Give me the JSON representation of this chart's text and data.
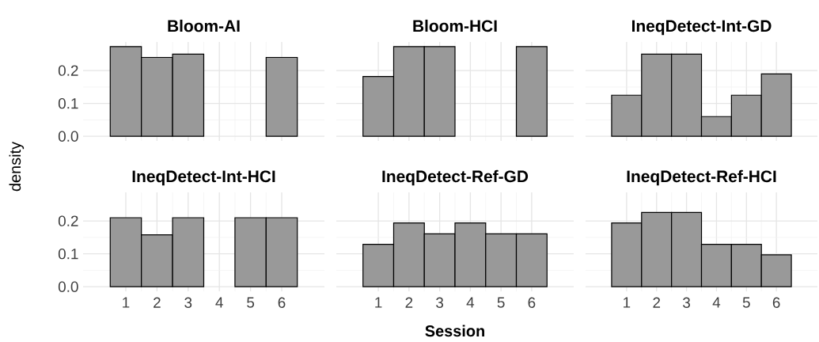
{
  "chart_data": [
    {
      "type": "histogram",
      "title": "Bloom-AI",
      "ylabel": "density",
      "bins": [
        0.5,
        1.5,
        2.5,
        3.5,
        4.5,
        5.5,
        6.5
      ],
      "values": [
        0.273,
        0.24,
        0.25,
        0,
        0,
        0.24
      ],
      "color": "#999999",
      "xlim": [
        -0.37,
        7.37
      ],
      "ylim": [
        -0.014,
        0.287
      ],
      "xticks": [
        1,
        2,
        3,
        4,
        5,
        6
      ],
      "yticks": [
        {
          "value": 0,
          "label": "0.0"
        },
        {
          "value": 0.1,
          "label": "0.1"
        },
        {
          "value": 0.2,
          "label": "0.2"
        }
      ],
      "grid": true,
      "tick_labels": "y"
    },
    {
      "type": "histogram",
      "title": "Bloom-HCI",
      "bins": [
        0.5,
        1.5,
        2.5,
        3.5,
        4.5,
        5.5,
        6.5
      ],
      "values": [
        0.182,
        0.273,
        0.273,
        0,
        0,
        0.273
      ],
      "color": "#999999",
      "xlim": [
        -0.37,
        7.37
      ],
      "ylim": [
        -0.014,
        0.287
      ],
      "xticks": [
        1,
        2,
        3,
        4,
        5,
        6
      ],
      "yticks": [
        0,
        0.1,
        0.2
      ],
      "grid": true,
      "tick_labels": false
    },
    {
      "type": "histogram",
      "title": "IneqDetect-Int-GD",
      "bins": [
        0.5,
        1.5,
        2.5,
        3.5,
        4.5,
        5.5,
        6.5
      ],
      "values": [
        0.125,
        0.25,
        0.25,
        0.06,
        0.125,
        0.19
      ],
      "color": "#999999",
      "xlim": [
        -0.37,
        7.37
      ],
      "ylim": [
        -0.014,
        0.287
      ],
      "xticks": [
        1,
        2,
        3,
        4,
        5,
        6
      ],
      "yticks": [
        0,
        0.1,
        0.2
      ],
      "grid": true,
      "tick_labels": false
    },
    {
      "type": "histogram",
      "title": "IneqDetect-Int-HCI",
      "bins": [
        0.5,
        1.5,
        2.5,
        3.5,
        4.5,
        5.5,
        6.5
      ],
      "values": [
        0.21,
        0.158,
        0.21,
        0,
        0.21,
        0.21
      ],
      "color": "#999999",
      "xlim": [
        -0.37,
        7.37
      ],
      "ylim": [
        -0.014,
        0.287
      ],
      "xticks": [
        1,
        2,
        3,
        4,
        5,
        6
      ],
      "yticks": [
        {
          "value": 0,
          "label": "0.0"
        },
        {
          "value": 0.1,
          "label": "0.1"
        },
        {
          "value": 0.2,
          "label": "0.2"
        }
      ],
      "grid": true
    },
    {
      "type": "histogram",
      "title": "IneqDetect-Ref-GD",
      "xlabel": "Session",
      "bins": [
        0.5,
        1.5,
        2.5,
        3.5,
        4.5,
        5.5,
        6.5
      ],
      "values": [
        0.129,
        0.194,
        0.161,
        0.194,
        0.161,
        0.161
      ],
      "color": "#999999",
      "xlim": [
        -0.37,
        7.37
      ],
      "ylim": [
        -0.014,
        0.287
      ],
      "xticks": [
        1,
        2,
        3,
        4,
        5,
        6
      ],
      "yticks": [
        0,
        0.1,
        0.2
      ],
      "grid": true,
      "tick_labels": "x"
    },
    {
      "type": "histogram",
      "title": "IneqDetect-Ref-HCI",
      "bins": [
        0.5,
        1.5,
        2.5,
        3.5,
        4.5,
        5.5,
        6.5
      ],
      "values": [
        0.194,
        0.226,
        0.226,
        0.129,
        0.129,
        0.097
      ],
      "color": "#999999",
      "xlim": [
        -0.37,
        7.37
      ],
      "ylim": [
        -0.014,
        0.287
      ],
      "xticks": [
        1,
        2,
        3,
        4,
        5,
        6
      ],
      "yticks": [
        0,
        0.1,
        0.2
      ],
      "grid": true,
      "tick_labels": "x"
    }
  ]
}
